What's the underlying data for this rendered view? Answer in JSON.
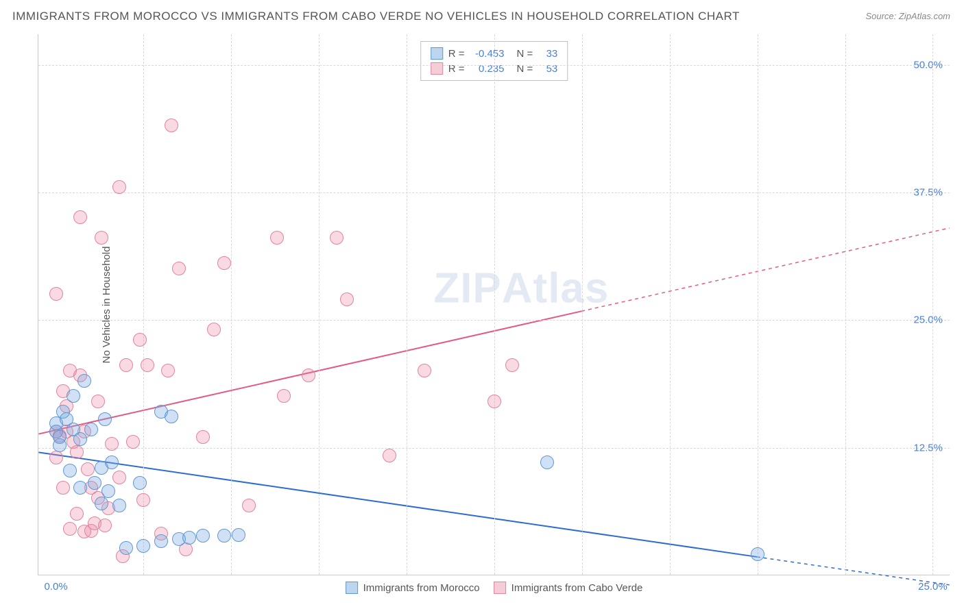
{
  "title": "IMMIGRANTS FROM MOROCCO VS IMMIGRANTS FROM CABO VERDE NO VEHICLES IN HOUSEHOLD CORRELATION CHART",
  "source": "Source: ZipAtlas.com",
  "watermark_a": "ZIP",
  "watermark_b": "Atlas",
  "y_axis_label": "No Vehicles in Household",
  "y_ticks": [
    {
      "value": 12.5,
      "label": "12.5%"
    },
    {
      "value": 25.0,
      "label": "25.0%"
    },
    {
      "value": 37.5,
      "label": "37.5%"
    },
    {
      "value": 50.0,
      "label": "50.0%"
    }
  ],
  "x_ticks": [
    {
      "value": 0.0,
      "label": "0.0%"
    },
    {
      "value": 25.0,
      "label": "25.0%"
    }
  ],
  "x_grid_positions": [
    2.5,
    5.0,
    7.5,
    10.0,
    12.5,
    15.0,
    17.5,
    20.0,
    22.5,
    25.0
  ],
  "ylim": [
    0,
    53
  ],
  "xlim": [
    -0.5,
    25.5
  ],
  "grid_color": "#d8d8d8",
  "background_color": "#ffffff",
  "axis_color": "#c8c8c8",
  "tick_label_color": "#4a7fd8",
  "title_color": "#555555",
  "label_fontsize": 15,
  "title_fontsize": 17,
  "marker_radius": 10,
  "series": [
    {
      "name": "Immigrants from Morocco",
      "key": "morocco",
      "fill_color": "rgba(120,170,225,0.35)",
      "stroke_color": "#5e98d4",
      "line_color": "#2f6cd0",
      "swatch_fill": "#bcd6f0",
      "swatch_border": "#5e98d4",
      "R": "-0.453",
      "N": "33",
      "trend": {
        "x1": -0.5,
        "y1": 12.0,
        "x2": 25.5,
        "y2": -1.0,
        "solid_until_x": 20.0
      },
      "points": [
        [
          0.0,
          14.0
        ],
        [
          0.0,
          14.8
        ],
        [
          0.1,
          12.7
        ],
        [
          0.2,
          16.0
        ],
        [
          0.3,
          15.2
        ],
        [
          0.4,
          10.2
        ],
        [
          0.5,
          17.5
        ],
        [
          0.5,
          14.2
        ],
        [
          0.7,
          13.3
        ],
        [
          0.7,
          8.5
        ],
        [
          0.8,
          19.0
        ],
        [
          0.1,
          13.5
        ],
        [
          1.0,
          14.2
        ],
        [
          1.1,
          9.0
        ],
        [
          1.3,
          7.0
        ],
        [
          1.3,
          10.5
        ],
        [
          1.4,
          15.2
        ],
        [
          1.5,
          8.2
        ],
        [
          1.6,
          11.0
        ],
        [
          1.8,
          6.8
        ],
        [
          2.0,
          2.6
        ],
        [
          2.4,
          9.0
        ],
        [
          2.5,
          2.8
        ],
        [
          3.0,
          16.0
        ],
        [
          3.0,
          3.3
        ],
        [
          3.3,
          15.5
        ],
        [
          3.5,
          3.5
        ],
        [
          3.8,
          3.6
        ],
        [
          4.2,
          3.8
        ],
        [
          4.8,
          3.8
        ],
        [
          5.2,
          3.9
        ],
        [
          14.0,
          11.0
        ],
        [
          20.0,
          2.0
        ]
      ]
    },
    {
      "name": "Immigrants from Cabo Verde",
      "key": "cabo_verde",
      "fill_color": "rgba(235,130,160,0.30)",
      "stroke_color": "#e3839f",
      "line_color": "#e05b86",
      "swatch_fill": "#f4cdd7",
      "swatch_border": "#e3839f",
      "R": "0.235",
      "N": "53",
      "trend": {
        "x1": -0.5,
        "y1": 13.8,
        "x2": 25.5,
        "y2": 34.0,
        "solid_until_x": 15.0
      },
      "points": [
        [
          0.0,
          27.5
        ],
        [
          0.0,
          14.0
        ],
        [
          0.0,
          11.5
        ],
        [
          0.1,
          13.6
        ],
        [
          0.2,
          18.0
        ],
        [
          0.2,
          8.5
        ],
        [
          0.3,
          14.0
        ],
        [
          0.3,
          16.5
        ],
        [
          0.4,
          20.0
        ],
        [
          0.4,
          4.5
        ],
        [
          0.5,
          13.0
        ],
        [
          0.6,
          12.0
        ],
        [
          0.6,
          6.0
        ],
        [
          0.7,
          35.0
        ],
        [
          0.7,
          19.5
        ],
        [
          0.8,
          4.2
        ],
        [
          0.8,
          14.0
        ],
        [
          0.9,
          10.3
        ],
        [
          1.0,
          4.3
        ],
        [
          1.0,
          8.5
        ],
        [
          1.1,
          5.0
        ],
        [
          1.2,
          17.0
        ],
        [
          1.2,
          7.5
        ],
        [
          1.3,
          33.0
        ],
        [
          1.4,
          4.8
        ],
        [
          1.5,
          6.5
        ],
        [
          1.6,
          12.8
        ],
        [
          1.8,
          38.0
        ],
        [
          1.8,
          9.5
        ],
        [
          1.9,
          1.8
        ],
        [
          2.0,
          20.5
        ],
        [
          2.2,
          13.0
        ],
        [
          2.4,
          23.0
        ],
        [
          2.5,
          7.3
        ],
        [
          2.6,
          20.5
        ],
        [
          3.0,
          4.0
        ],
        [
          3.2,
          20.0
        ],
        [
          3.3,
          44.0
        ],
        [
          3.5,
          30.0
        ],
        [
          3.7,
          2.5
        ],
        [
          4.2,
          13.5
        ],
        [
          4.5,
          24.0
        ],
        [
          4.8,
          30.5
        ],
        [
          5.5,
          6.8
        ],
        [
          6.3,
          33.0
        ],
        [
          6.5,
          17.5
        ],
        [
          7.2,
          19.5
        ],
        [
          8.0,
          33.0
        ],
        [
          8.3,
          27.0
        ],
        [
          9.5,
          11.7
        ],
        [
          10.5,
          20.0
        ],
        [
          12.5,
          17.0
        ],
        [
          13.0,
          20.5
        ]
      ]
    }
  ],
  "stat_legend_labels": {
    "R": "R =",
    "N": "N ="
  }
}
